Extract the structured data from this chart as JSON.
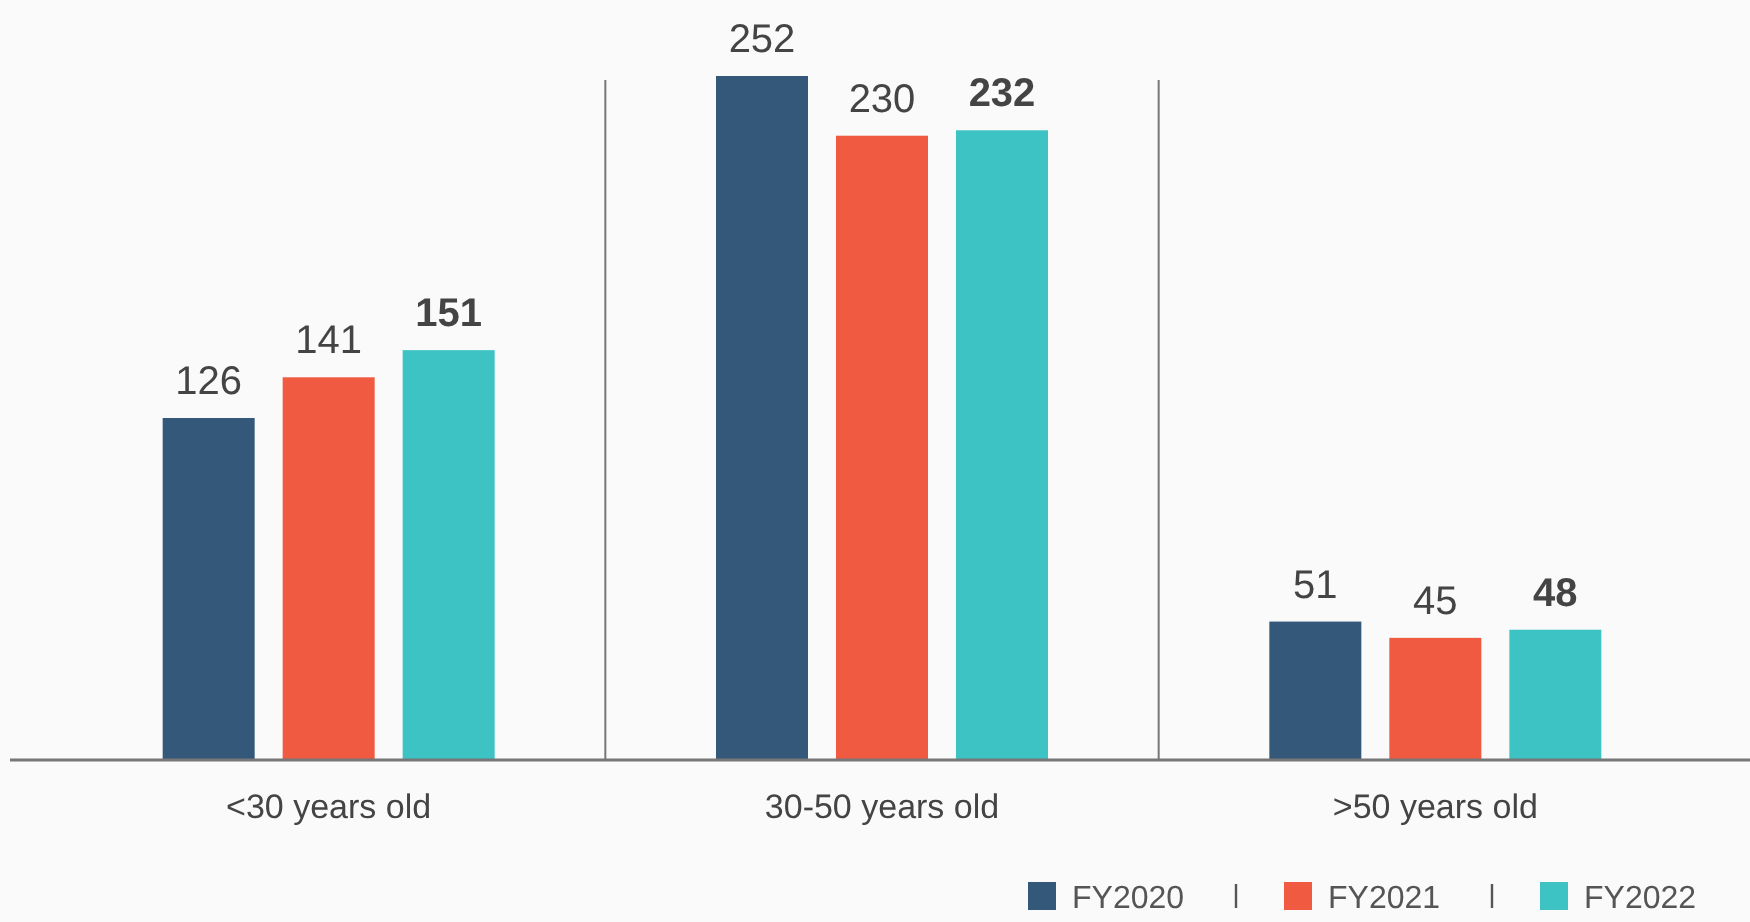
{
  "chart_data": {
    "type": "bar",
    "categories": [
      "<30 years old",
      "30-50 years old",
      ">50 years old"
    ],
    "series": [
      {
        "name": "FY2020",
        "color": "#34587a",
        "values": [
          126,
          252,
          51
        ]
      },
      {
        "name": "FY2021",
        "color": "#f05a40",
        "values": [
          141,
          230,
          45
        ]
      },
      {
        "name": "FY2022",
        "color": "#3ec3c5",
        "values": [
          151,
          232,
          48
        ]
      }
    ],
    "ylim": [
      0,
      280
    ],
    "data_labels": true,
    "legend": "bottom right"
  }
}
